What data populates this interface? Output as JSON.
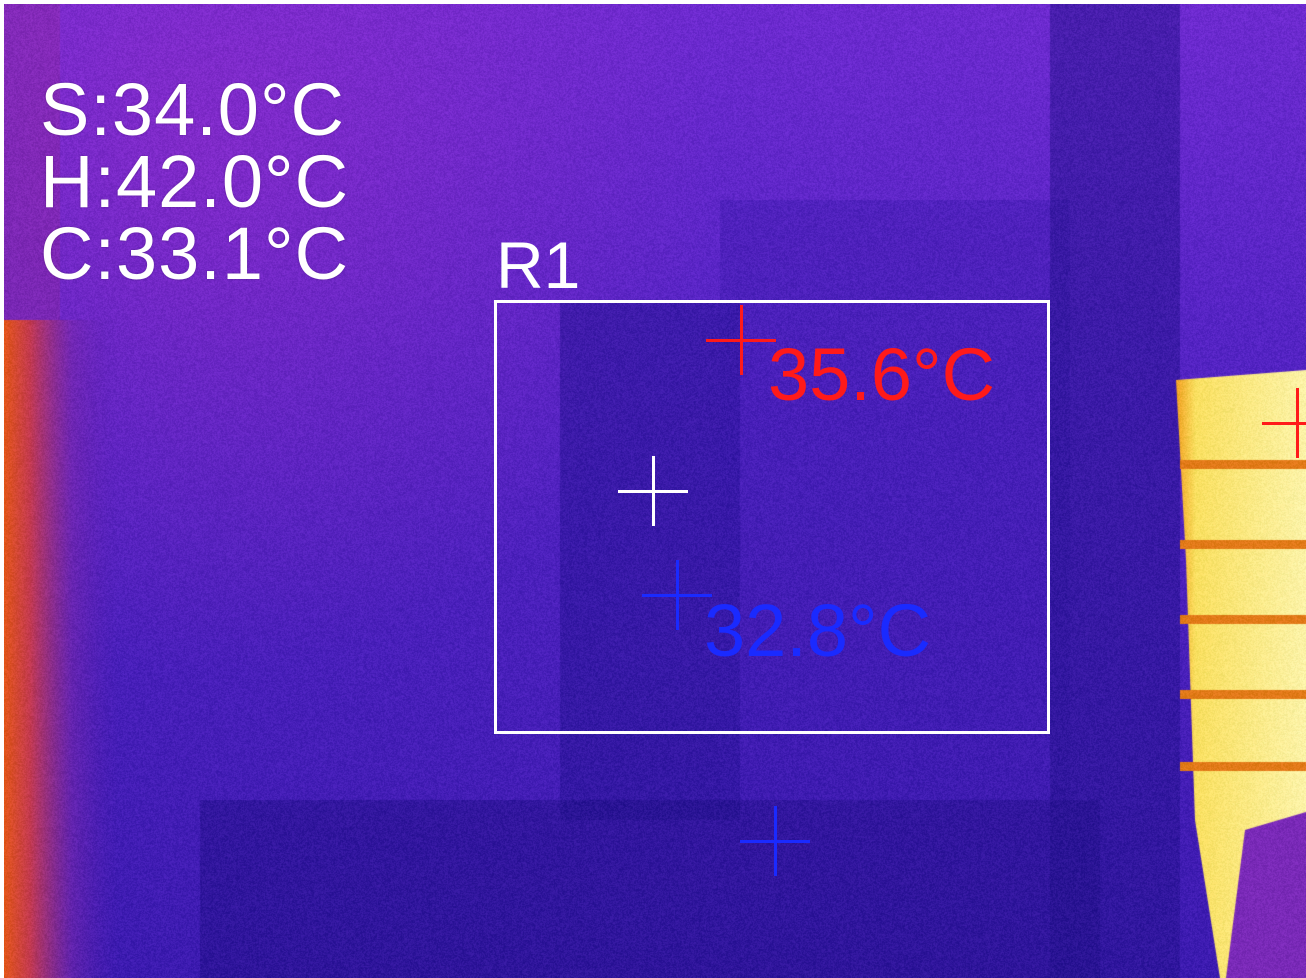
{
  "stats": {
    "spot": "S:34.0°C",
    "hot": "H:42.0°C",
    "cold": "C:33.1°C"
  },
  "roi": {
    "label": "R1",
    "max_temp": "35.6°C",
    "min_temp": "32.8°C"
  },
  "colors": {
    "hot_marker": "#ff1a1a",
    "cold_marker": "#1a2aff",
    "center_marker": "#ffffff",
    "overlay_text": "#ffffff"
  },
  "icons": {
    "center": "crosshair",
    "hotspot": "crosshair",
    "coldspot": "crosshair"
  }
}
